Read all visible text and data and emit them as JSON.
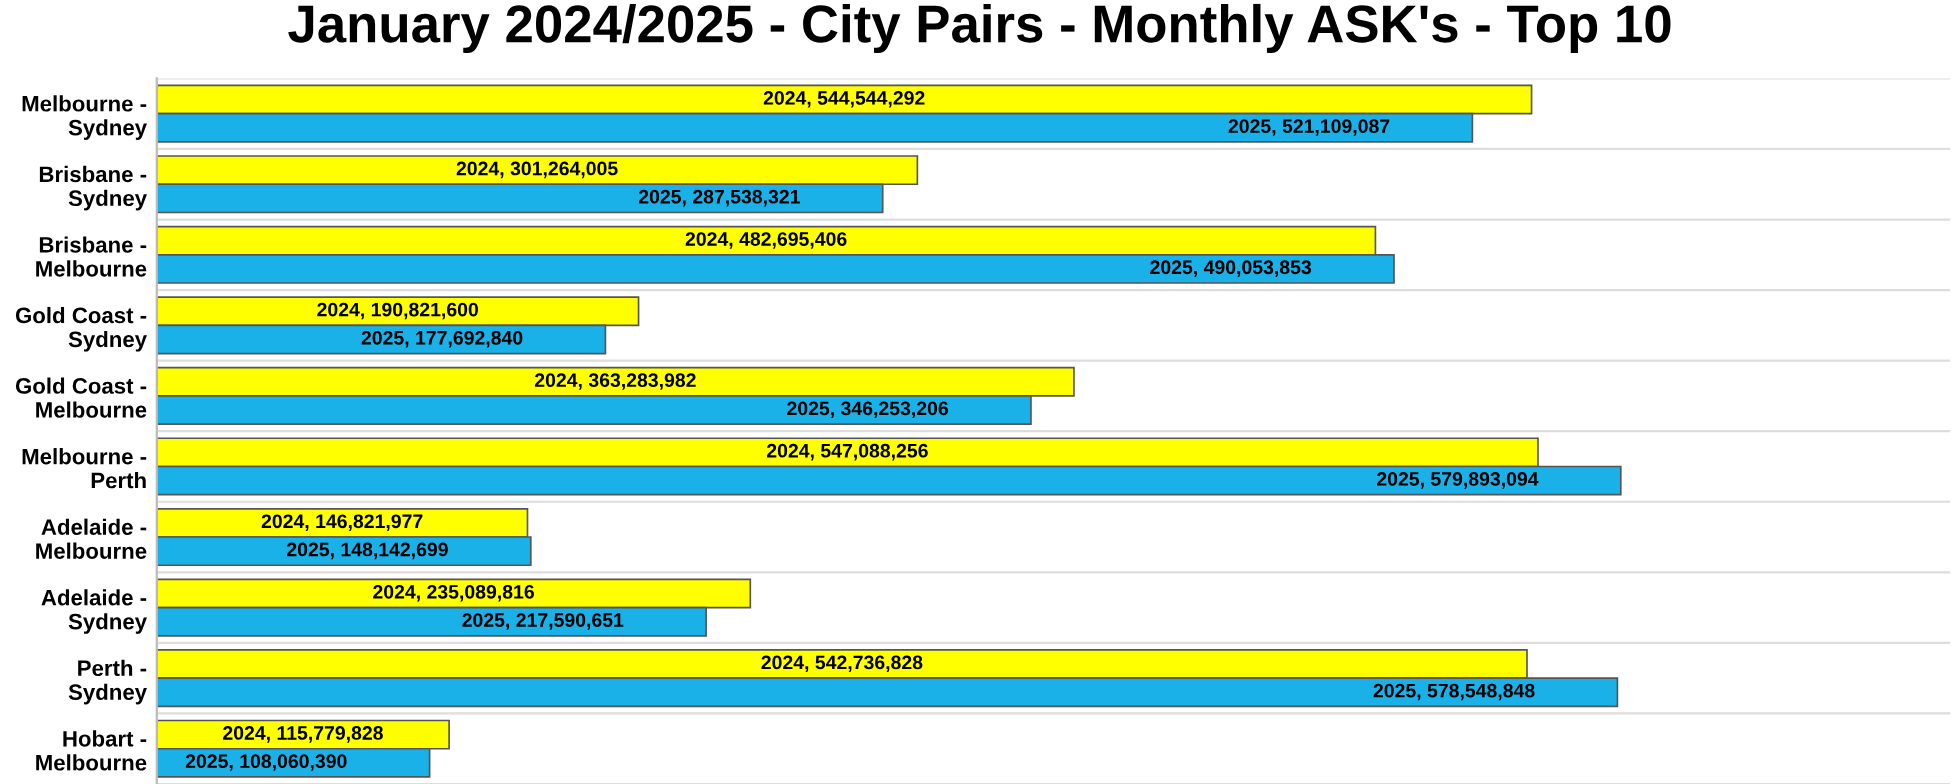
{
  "chart_data": {
    "type": "bar",
    "orientation": "horizontal",
    "title": "January 2024/2025 - City Pairs - Monthly ASK's - Top 10",
    "categories": [
      "Melbourne -\nSydney",
      "Brisbane -\nSydney",
      "Brisbane -\nMelbourne",
      "Gold Coast -\nSydney",
      "Gold Coast -\nMelbourne",
      "Melbourne -\nPerth",
      "Adelaide -\nMelbourne",
      "Adelaide -\nSydney",
      "Perth -\nSydney",
      "Hobart -\nMelbourne"
    ],
    "series": [
      {
        "color": "#ffff00",
        "values": [
          544544292,
          301264005,
          482695406,
          190821600,
          363283982,
          547088256,
          146821977,
          235089816,
          542736828,
          115779828
        ],
        "value_labels": [
          "2024, 544,544,292",
          "2024, 301,264,005",
          "2024, 482,695,406",
          "2024, 190,821,600",
          "2024, 363,283,982",
          "2024, 547,088,256",
          "2024, 146,821,977",
          "2024, 235,089,816",
          "2024, 542,736,828",
          "2024, 115,779,828"
        ]
      },
      {
        "color": "#1ab0e8",
        "values": [
          521109087,
          287538321,
          490053853,
          177692840,
          346253206,
          579893094,
          148142699,
          217590651,
          578548848,
          108060390
        ],
        "value_labels": [
          "2025, 521,109,087",
          "2025, 287,538,321",
          "2025, 490,053,853",
          "2025, 177,692,840",
          "2025, 346,253,206",
          "2025, 579,893,094",
          "2025, 148,142,699",
          "2025, 217,590,651",
          "2025, 578,548,848",
          "2025, 108,060,390"
        ]
      }
    ],
    "legend": false,
    "grid": false
  }
}
